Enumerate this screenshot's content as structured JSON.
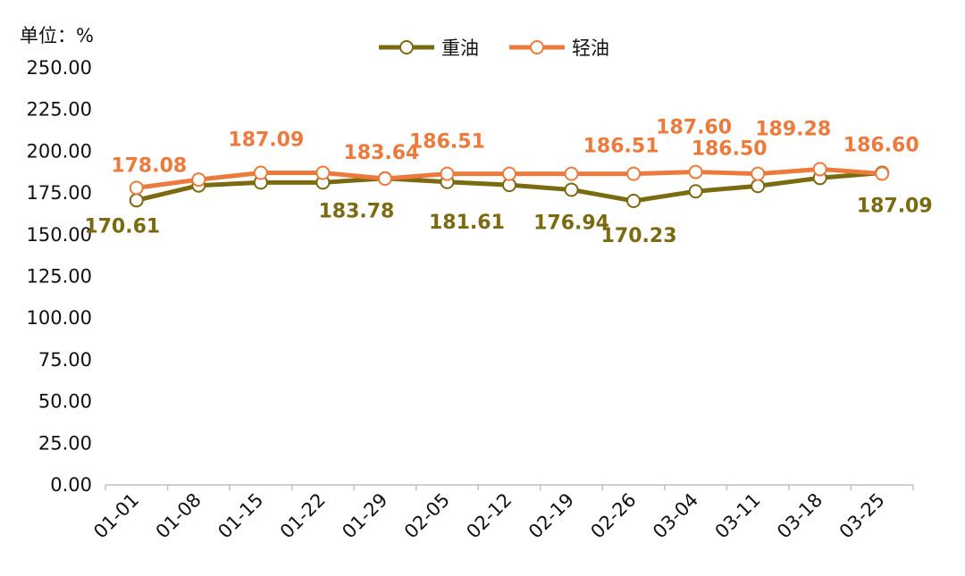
{
  "chart_data": {
    "type": "line",
    "unit_label": "单位：%",
    "categories": [
      "01-01",
      "01-08",
      "01-15",
      "01-22",
      "01-29",
      "02-05",
      "02-12",
      "02-19",
      "02-26",
      "03-04",
      "03-11",
      "03-18",
      "03-25"
    ],
    "ylim": [
      0,
      250
    ],
    "y_ticks": [
      "0.00",
      "25.00",
      "50.00",
      "75.00",
      "100.00",
      "125.00",
      "150.00",
      "175.00",
      "200.00",
      "225.00",
      "250.00"
    ],
    "grid": false,
    "legend_position": "top-center",
    "series": [
      {
        "name": "重油",
        "color": "#7a6a10",
        "values": [
          170.61,
          179.5,
          181.3,
          181.3,
          183.78,
          181.61,
          179.8,
          176.94,
          170.23,
          176.0,
          179.2,
          184.0,
          187.09
        ],
        "labels": [
          "170.61",
          "",
          "",
          "",
          "183.78",
          "181.61",
          "",
          "176.94",
          "170.23",
          "",
          "",
          "",
          "187.09"
        ]
      },
      {
        "name": "轻油",
        "color": "#ec7a3c",
        "values": [
          178.08,
          183.0,
          187.09,
          187.09,
          183.64,
          186.51,
          186.51,
          186.51,
          186.51,
          187.6,
          186.5,
          189.28,
          186.6
        ],
        "labels": [
          "178.08",
          "",
          "187.09",
          "",
          "183.64",
          "186.51",
          "",
          "",
          "186.51",
          "187.60",
          "186.50",
          "189.28",
          "186.60"
        ]
      }
    ]
  }
}
